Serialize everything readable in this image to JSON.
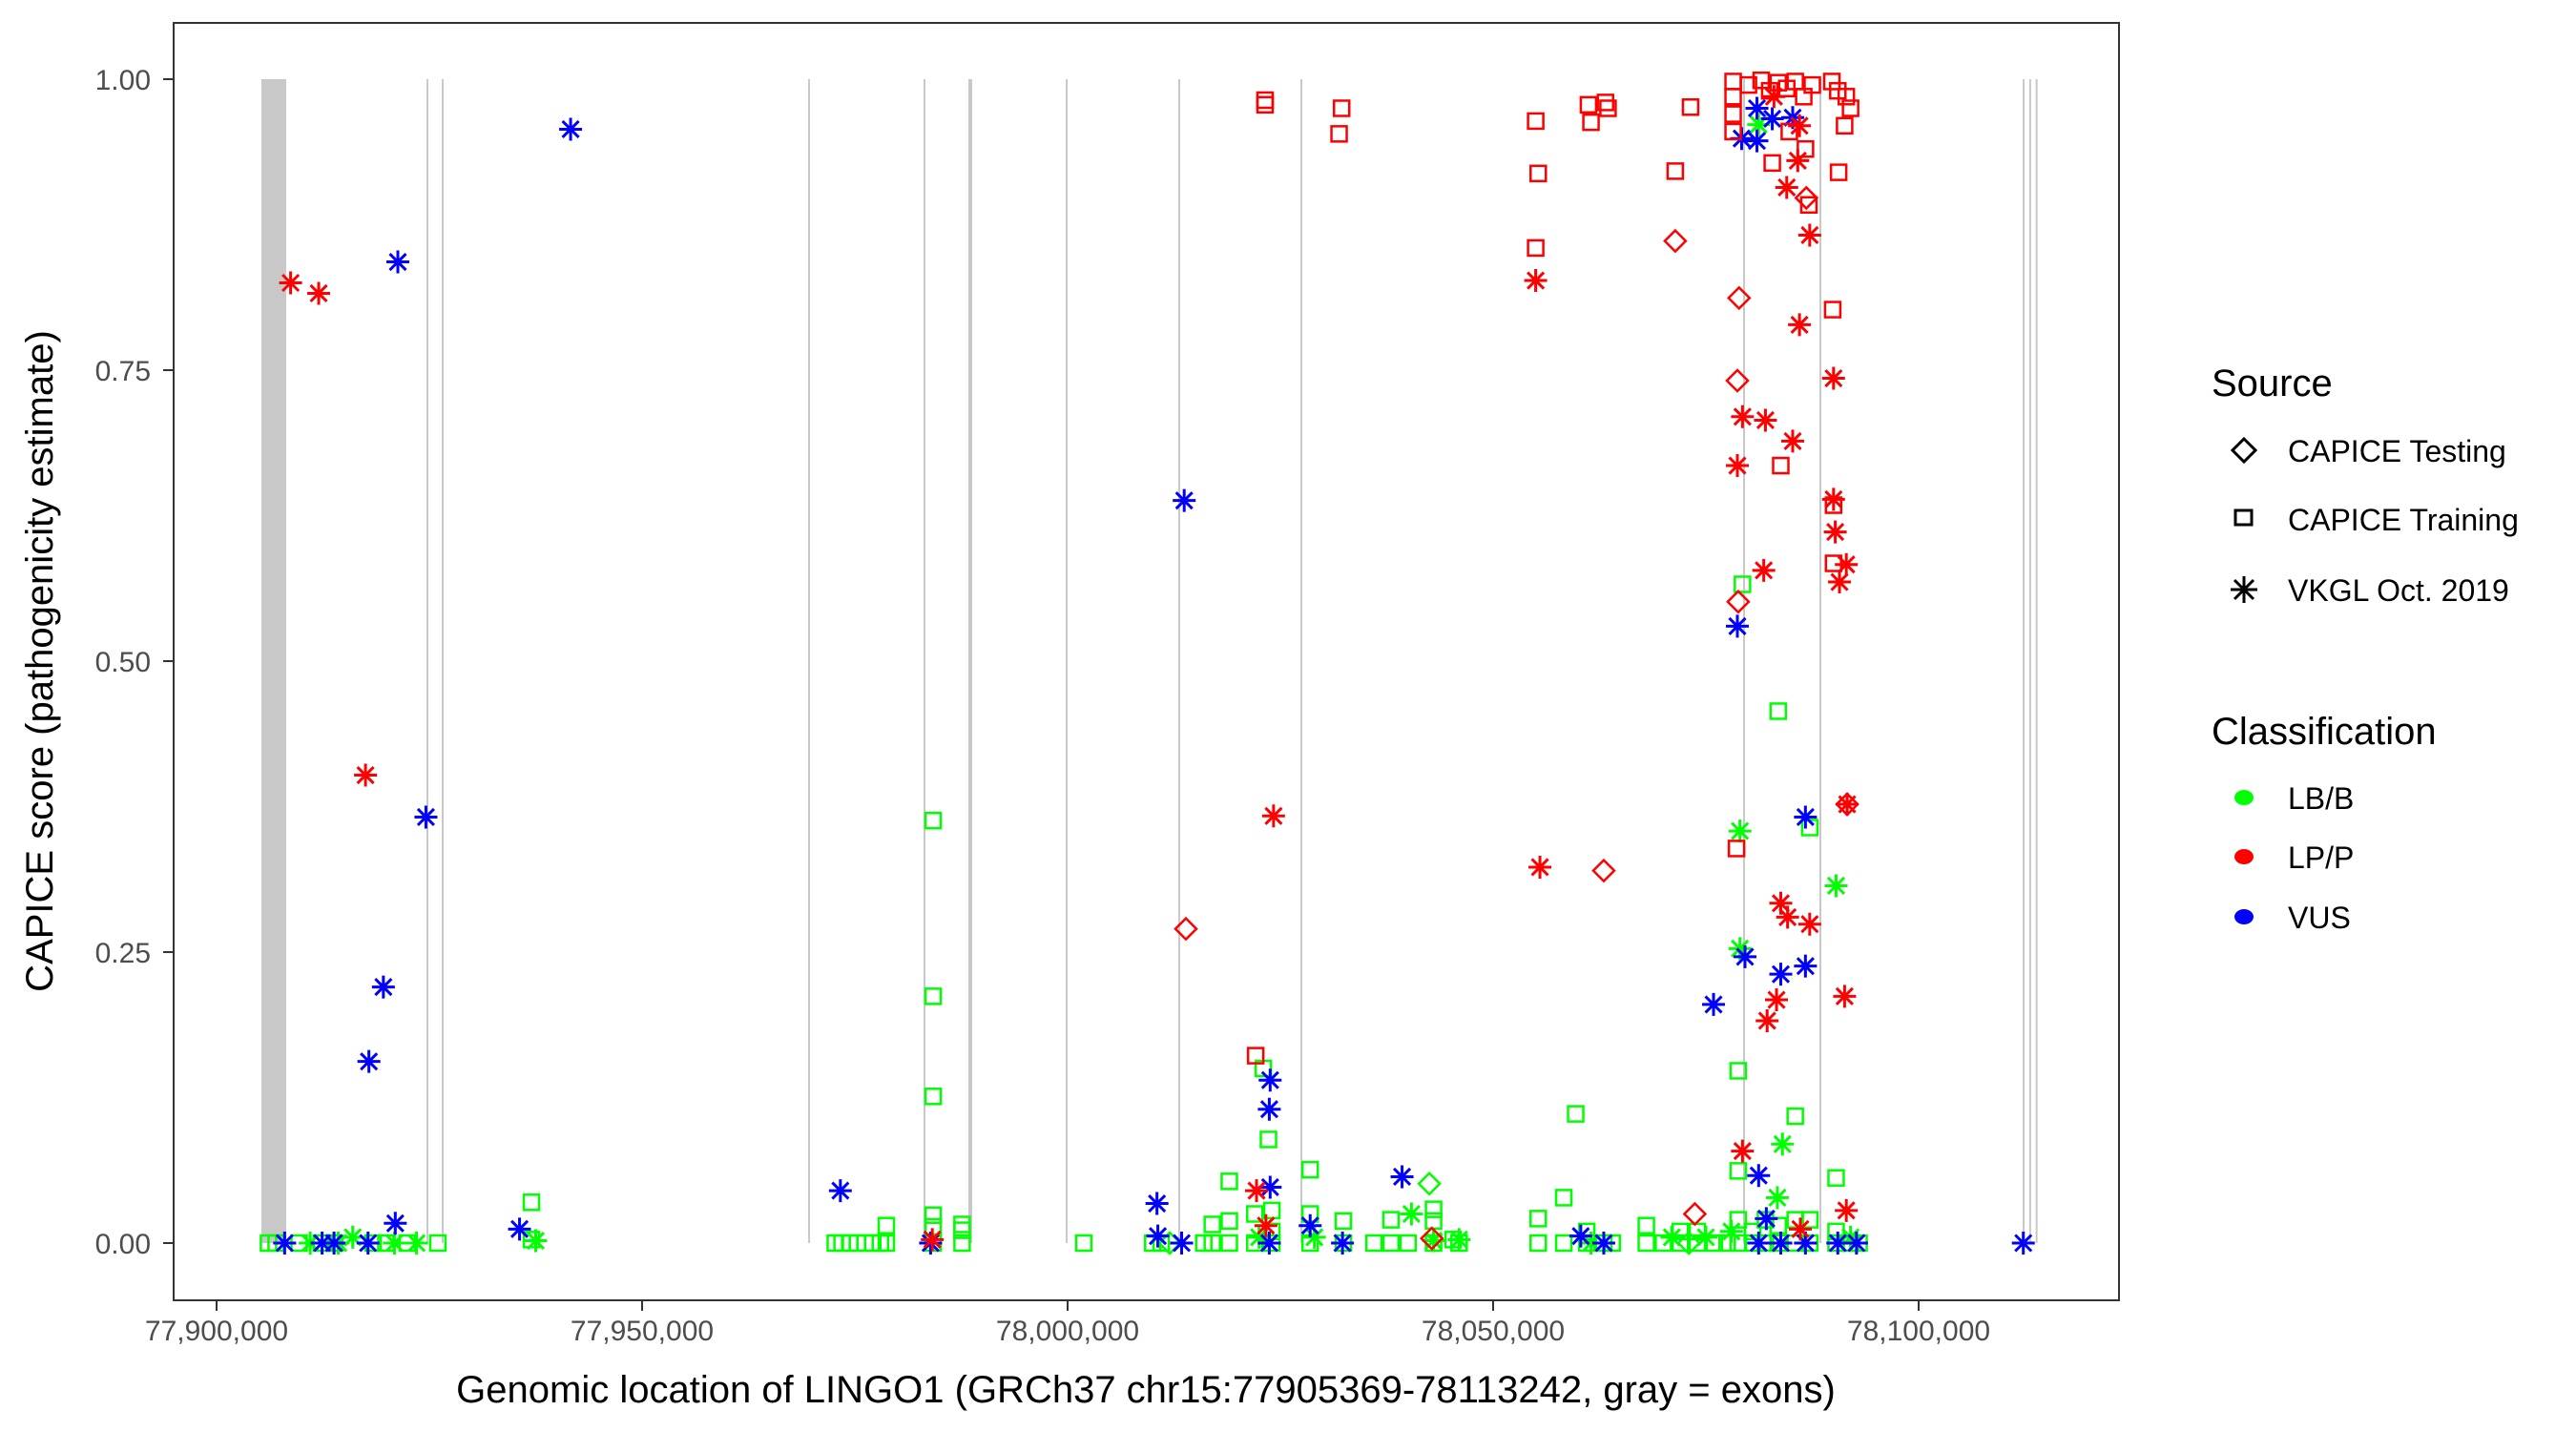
{
  "chart_data": {
    "type": "scatter",
    "title": "",
    "xlabel": "Genomic location of LINGO1 (GRCh37 chr15:77905369-78113242, gray = exons)",
    "ylabel": "CAPICE score (pathogenicity estimate)",
    "xlim": [
      77892000,
      78120000
    ],
    "ylim": [
      -0.05,
      1.05
    ],
    "x_ticks": [
      77900000,
      77950000,
      78000000,
      78050000,
      78100000
    ],
    "x_tick_labels": [
      "77,900,000",
      "77,950,000",
      "78,000,000",
      "78,050,000",
      "78,100,000"
    ],
    "y_ticks": [
      0,
      0.25,
      0.5,
      0.75,
      1.0
    ],
    "y_tick_labels": [
      "0.00",
      "0.25",
      "0.50",
      "0.75",
      "1.00"
    ],
    "grid": false,
    "exons": [
      [
        77905270,
        77908180
      ],
      [
        77924660,
        77924700
      ],
      [
        77926460,
        77926500
      ],
      [
        77969510,
        77969550
      ],
      [
        77983070,
        77983110
      ],
      [
        77988340,
        77988380
      ],
      [
        77988560,
        77988600
      ],
      [
        77999780,
        77999820
      ],
      [
        78013000,
        78013040
      ],
      [
        78027350,
        78027390
      ],
      [
        78079370,
        78079410
      ],
      [
        78088340,
        78088380
      ],
      [
        78112220,
        78112260
      ],
      [
        78112990,
        78113030
      ],
      [
        78113750,
        78113790
      ]
    ],
    "legend": {
      "placement": "right",
      "source": {
        "title": "Source",
        "items": [
          {
            "label": "CAPICE Testing",
            "shape": "diamond"
          },
          {
            "label": "CAPICE Training",
            "shape": "square"
          },
          {
            "label": "VKGL Oct. 2019",
            "shape": "star"
          }
        ]
      },
      "classification": {
        "title": "Classification",
        "items": [
          {
            "label": "LB/B",
            "color": "#00ff00"
          },
          {
            "label": "LP/P",
            "color": "#ff0000"
          },
          {
            "label": "VUS",
            "color": "#0000ff"
          }
        ]
      }
    },
    "colors": {
      "LB/B": "#00ff00",
      "LP/P": "#ff0000",
      "VUS": "#0000ff"
    },
    "series": [
      {
        "name": "LB/B CAPICE Training",
        "classification": "LB/B",
        "source": "CAPICE Training",
        "points": [
          [
            77906100,
            0
          ],
          [
            77907000,
            0
          ],
          [
            77909700,
            0
          ],
          [
            77912300,
            0
          ],
          [
            77913900,
            0
          ],
          [
            77918400,
            0
          ],
          [
            77919900,
            0
          ],
          [
            77922400,
            0
          ],
          [
            77926000,
            0
          ],
          [
            77937000,
            0.035
          ],
          [
            77937000,
            0.003
          ],
          [
            77972700,
            0
          ],
          [
            77973500,
            0
          ],
          [
            77974400,
            0
          ],
          [
            77975300,
            0
          ],
          [
            77976200,
            0
          ],
          [
            77977100,
            0
          ],
          [
            77978000,
            0
          ],
          [
            77978700,
            0.015
          ],
          [
            77978700,
            0
          ],
          [
            77984200,
            0.363
          ],
          [
            77984200,
            0.212
          ],
          [
            77984200,
            0.126
          ],
          [
            77984200,
            0.024
          ],
          [
            77984200,
            0.014
          ],
          [
            77984200,
            0
          ],
          [
            77987600,
            0.016
          ],
          [
            77987600,
            0.011
          ],
          [
            77987600,
            0
          ],
          [
            78001900,
            0
          ],
          [
            78010000,
            0
          ],
          [
            78011000,
            0
          ],
          [
            78016000,
            0
          ],
          [
            78017000,
            0.016
          ],
          [
            78017000,
            0
          ],
          [
            78019000,
            0.053
          ],
          [
            78019000,
            0.019
          ],
          [
            78019000,
            0
          ],
          [
            78022000,
            0.025
          ],
          [
            78022000,
            0
          ],
          [
            78023000,
            0.15
          ],
          [
            78023600,
            0.089
          ],
          [
            78024000,
            0.028
          ],
          [
            78024000,
            0.01
          ],
          [
            78024000,
            0
          ],
          [
            78028500,
            0.063
          ],
          [
            78028500,
            0.025
          ],
          [
            78028500,
            0
          ],
          [
            78032400,
            0.019
          ],
          [
            78032400,
            0
          ],
          [
            78036000,
            0
          ],
          [
            78038000,
            0.02
          ],
          [
            78038000,
            0
          ],
          [
            78040000,
            0
          ],
          [
            78043000,
            0.029
          ],
          [
            78043000,
            0.019
          ],
          [
            78043000,
            0
          ],
          [
            78045300,
            0.003
          ],
          [
            78046000,
            0
          ],
          [
            78055300,
            0.021
          ],
          [
            78055300,
            0
          ],
          [
            78058300,
            0.039
          ],
          [
            78058300,
            0
          ],
          [
            78059700,
            0.111
          ],
          [
            78061000,
            0.01
          ],
          [
            78061000,
            0
          ],
          [
            78063000,
            0
          ],
          [
            78064000,
            0
          ],
          [
            78068000,
            0.015
          ],
          [
            78068000,
            0
          ],
          [
            78070000,
            0
          ],
          [
            78072000,
            0.01
          ],
          [
            78072000,
            0
          ],
          [
            78074000,
            0.01
          ],
          [
            78074000,
            0
          ],
          [
            78076000,
            0
          ],
          [
            78077500,
            0
          ],
          [
            78078800,
            0.148
          ],
          [
            78078800,
            0.062
          ],
          [
            78078800,
            0.02
          ],
          [
            78078800,
            0
          ],
          [
            78079300,
            0.566
          ],
          [
            78080500,
            0.01
          ],
          [
            78080500,
            0
          ],
          [
            78082000,
            0.02
          ],
          [
            78082000,
            0
          ],
          [
            78083500,
            0.457
          ],
          [
            78083500,
            0.015
          ],
          [
            78083500,
            0
          ],
          [
            78085500,
            0.109
          ],
          [
            78085500,
            0.02
          ],
          [
            78085500,
            0
          ],
          [
            78087200,
            0.357
          ],
          [
            78087200,
            0.02
          ],
          [
            78087200,
            0
          ],
          [
            78090300,
            0.056
          ],
          [
            78090300,
            0.01
          ],
          [
            78090300,
            0
          ],
          [
            78092000,
            0
          ],
          [
            78093000,
            0
          ]
        ]
      },
      {
        "name": "LB/B CAPICE Testing",
        "classification": "LB/B",
        "source": "CAPICE Testing",
        "points": [
          [
            78042500,
            0.051
          ],
          [
            78012000,
            0
          ],
          [
            78073000,
            0
          ]
        ]
      },
      {
        "name": "LB/B VKGL Oct. 2019",
        "classification": "LB/B",
        "source": "VKGL Oct. 2019",
        "points": [
          [
            77911000,
            0
          ],
          [
            77914300,
            0
          ],
          [
            77916000,
            0.005
          ],
          [
            77920900,
            0
          ],
          [
            77923500,
            0
          ],
          [
            77937500,
            0.002
          ],
          [
            78022500,
            0.005
          ],
          [
            78029000,
            0.005
          ],
          [
            78040400,
            0.025
          ],
          [
            78043000,
            0.002
          ],
          [
            78046000,
            0.003
          ],
          [
            78061500,
            0
          ],
          [
            78071000,
            0.005
          ],
          [
            78075000,
            0.005
          ],
          [
            78078000,
            0.01
          ],
          [
            78079000,
            0.354
          ],
          [
            78079000,
            0.253
          ],
          [
            78081200,
            0.961
          ],
          [
            78083400,
            0.039
          ],
          [
            78084000,
            0.085
          ],
          [
            78090300,
            0.307
          ],
          [
            78092000,
            0.005
          ]
        ]
      },
      {
        "name": "LP/P CAPICE Training",
        "classification": "LP/P",
        "source": "CAPICE Training",
        "points": [
          [
            78023200,
            0.978
          ],
          [
            78023200,
            0.982
          ],
          [
            78032200,
            0.975
          ],
          [
            78031900,
            0.953
          ],
          [
            78022100,
            0.161
          ],
          [
            78055000,
            0.964
          ],
          [
            78055300,
            0.919
          ],
          [
            78055000,
            0.855
          ],
          [
            78061200,
            0.978
          ],
          [
            78063200,
            0.98
          ],
          [
            78061500,
            0.963
          ],
          [
            78063500,
            0.975
          ],
          [
            78071400,
            0.921
          ],
          [
            78073200,
            0.976
          ],
          [
            78078600,
            0.339
          ],
          [
            78083800,
            0.668
          ],
          [
            78078200,
            0.998
          ],
          [
            78078200,
            0.985
          ],
          [
            78078200,
            0.97
          ],
          [
            78078200,
            0.955
          ],
          [
            78080000,
            0.995
          ],
          [
            78081500,
            0.999
          ],
          [
            78082500,
            0.99
          ],
          [
            78083500,
            0.997
          ],
          [
            78084500,
            0.992
          ],
          [
            78085500,
            0.998
          ],
          [
            78086500,
            0.985
          ],
          [
            78087500,
            0.995
          ],
          [
            78082800,
            0.928
          ],
          [
            78084800,
            0.955
          ],
          [
            78086700,
            0.94
          ],
          [
            78087100,
            0.892
          ],
          [
            78089800,
            0.998
          ],
          [
            78090500,
            0.99
          ],
          [
            78091500,
            0.985
          ],
          [
            78092000,
            0.975
          ],
          [
            78090600,
            0.92
          ],
          [
            78091300,
            0.96
          ],
          [
            78089900,
            0.802
          ],
          [
            78090000,
            0.634
          ],
          [
            78090000,
            0.584
          ]
        ]
      },
      {
        "name": "LP/P CAPICE Testing",
        "classification": "LP/P",
        "source": "CAPICE Testing",
        "points": [
          [
            78013900,
            0.27
          ],
          [
            78063000,
            0.32
          ],
          [
            78071400,
            0.861
          ],
          [
            78078900,
            0.812
          ],
          [
            78078700,
            0.741
          ],
          [
            78078800,
            0.551
          ],
          [
            78073700,
            0.025
          ],
          [
            78042800,
            0.004
          ],
          [
            78086800,
            0.898
          ],
          [
            78091600,
            0.377
          ]
        ]
      },
      {
        "name": "LP/P VKGL Oct. 2019",
        "classification": "LP/P",
        "source": "VKGL Oct. 2019",
        "points": [
          [
            77908700,
            0.825
          ],
          [
            77912000,
            0.816
          ],
          [
            77917500,
            0.402
          ],
          [
            77984100,
            0.003
          ],
          [
            78022200,
            0.045
          ],
          [
            78023300,
            0.015
          ],
          [
            78024200,
            0.367
          ],
          [
            78055000,
            0.827
          ],
          [
            78055500,
            0.323
          ],
          [
            78079300,
            0.71
          ],
          [
            78082000,
            0.707
          ],
          [
            78085200,
            0.689
          ],
          [
            78078700,
            0.668
          ],
          [
            78081800,
            0.578
          ],
          [
            78083800,
            0.292
          ],
          [
            78084600,
            0.28
          ],
          [
            78087200,
            0.274
          ],
          [
            78083300,
            0.209
          ],
          [
            78082200,
            0.191
          ],
          [
            78079300,
            0.079
          ],
          [
            78086100,
            0.012
          ],
          [
            78090000,
            0.743
          ],
          [
            78090000,
            0.639
          ],
          [
            78090200,
            0.611
          ],
          [
            78091500,
            0.583
          ],
          [
            78090700,
            0.568
          ],
          [
            78091600,
            0.377
          ],
          [
            78091300,
            0.212
          ],
          [
            78091500,
            0.028
          ],
          [
            78086000,
            0.789
          ],
          [
            78087200,
            0.866
          ],
          [
            78084500,
            0.907
          ],
          [
            78085800,
            0.93
          ],
          [
            78086000,
            0.96
          ],
          [
            78083000,
            0.985
          ]
        ]
      },
      {
        "name": "VUS VKGL Oct. 2019",
        "classification": "VUS",
        "source": "VKGL Oct. 2019",
        "points": [
          [
            77908000,
            0
          ],
          [
            77912400,
            0
          ],
          [
            77913800,
            0
          ],
          [
            77917900,
            0.156
          ],
          [
            77919600,
            0.22
          ],
          [
            77921300,
            0.843
          ],
          [
            77921000,
            0.017
          ],
          [
            77917800,
            0
          ],
          [
            77924600,
            0.366
          ],
          [
            77935600,
            0.012
          ],
          [
            77941600,
            0.957
          ],
          [
            77973300,
            0.045
          ],
          [
            77983900,
            0
          ],
          [
            78010500,
            0.034
          ],
          [
            78010600,
            0.006
          ],
          [
            78013400,
            0
          ],
          [
            78013700,
            0.638
          ],
          [
            78023800,
            0.14
          ],
          [
            78023700,
            0.115
          ],
          [
            78023800,
            0.048
          ],
          [
            78023700,
            0
          ],
          [
            78028500,
            0.015
          ],
          [
            78032300,
            0
          ],
          [
            78039300,
            0.057
          ],
          [
            78060300,
            0.006
          ],
          [
            78063000,
            0
          ],
          [
            78075900,
            0.205
          ],
          [
            78078700,
            0.53
          ],
          [
            78079600,
            0.246
          ],
          [
            78081200,
            0.058
          ],
          [
            78082100,
            0.021
          ],
          [
            78081200,
            0
          ],
          [
            78083800,
            0.231
          ],
          [
            78086700,
            0.238
          ],
          [
            78086700,
            0.366
          ],
          [
            78083800,
            0
          ],
          [
            78086700,
            0
          ],
          [
            78090500,
            0
          ],
          [
            78092700,
            0
          ],
          [
            78079200,
            0.949
          ],
          [
            78081000,
            0.947
          ],
          [
            78082800,
            0.966
          ],
          [
            78085200,
            0.967
          ],
          [
            78081000,
            0.975
          ],
          [
            78112300,
            0
          ]
        ]
      }
    ]
  }
}
